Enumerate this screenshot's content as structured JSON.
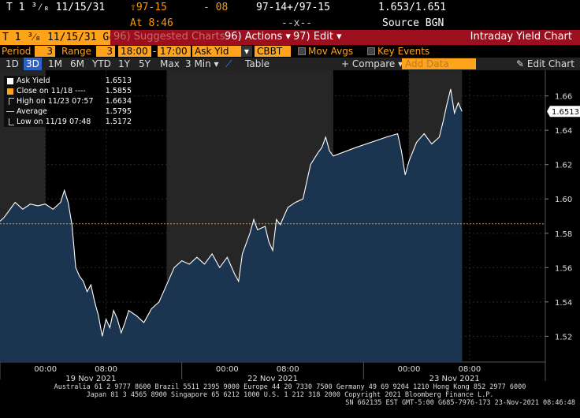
{
  "header": {
    "ticker": "T 1 ³⁄₈ 11/15/31",
    "price": "⇧97-15",
    "change": "- 08",
    "bid_ask": "97-14+/97-15",
    "yields": "1.653/1.651",
    "time_label": "At 8:46",
    "size": "--x--",
    "source": "Source BGN"
  },
  "title_bar": {
    "ticker_box": "T 1 ³⁄₈ 11/15/31 Gc",
    "suggested": "96) Suggested Charts",
    "actions": "96) Actions ▾",
    "edit": "97) Edit ▾",
    "chart_title": "Intraday Yield Chart"
  },
  "params": {
    "period_label": "Period",
    "period_value": "3",
    "range_label": "Range",
    "range_value": "3",
    "time_from": "18:00",
    "time_to": "17:00",
    "field": "Ask Yld",
    "field_arrow": "▾",
    "source": "CBBT",
    "mov_avgs": "Mov Avgs",
    "key_events": "Key Events"
  },
  "range_buttons": [
    "1D",
    "3D",
    "1M",
    "6M",
    "YTD",
    "1Y",
    "5Y",
    "Max"
  ],
  "range_selected": "3D",
  "interval": "3 Min ▾",
  "table_label": "Table",
  "compare_label": "+ Compare ▾",
  "add_data_placeholder": "Add Data",
  "edit_chart_label": "✎ Edit Chart",
  "legend": [
    {
      "label": "Ask Yield",
      "value": "1.6513",
      "marker": "white-square"
    },
    {
      "label": "Close on 11/18 ----",
      "value": "1.5855",
      "marker": "orange-square"
    },
    {
      "label": "High on 11/23 07:57",
      "value": "1.6634",
      "marker": "high-tick"
    },
    {
      "label": "Average",
      "value": "1.5795",
      "marker": "average-line"
    },
    {
      "label": "Low on 11/19 07:48",
      "value": "1.5172",
      "marker": "low-tick"
    }
  ],
  "last_value_tag": "1.6513",
  "footer": {
    "line1": "Australia 61 2 9777 8600 Brazil 5511 2395 9000 Europe 44 20 7330 7500 Germany 49 69 9204 1210 Hong Kong 852 2977 6000",
    "line2": "Japan 81 3 4565 8900      Singapore 65 6212 1000      U.S. 1 212 318 2000           Copyright 2021 Bloomberg Finance L.P.",
    "line3": "SN 662135 EST  GMT-5:00 G685-7976-173 23-Nov-2021 08:46:48"
  },
  "colors": {
    "orange": "#ffa31a",
    "title_bar": "#9b0f1f",
    "fill": "#1b3450",
    "session_shade": "#262626",
    "line": "#ffffff",
    "close_line": "#ff8c00"
  },
  "chart_data": {
    "type": "area",
    "title": "Intraday Yield Chart",
    "series": [
      {
        "name": "Ask Yield"
      }
    ],
    "ylim": [
      1.505,
      1.675
    ],
    "yticks": [
      1.52,
      1.54,
      1.56,
      1.58,
      1.6,
      1.62,
      1.64,
      1.66
    ],
    "ytick_labels": [
      "1.52",
      "1.54",
      "1.56",
      "1.58",
      "1.60",
      "1.62",
      "1.64",
      "1.66"
    ],
    "xticks": [
      {
        "t": 6,
        "label": "00:00"
      },
      {
        "t": 14,
        "label": "08:00"
      },
      {
        "t": 30,
        "label": "00:00"
      },
      {
        "t": 38,
        "label": "08:00"
      },
      {
        "t": 54,
        "label": "00:00"
      },
      {
        "t": 62,
        "label": "08:00"
      }
    ],
    "day_labels": [
      {
        "t": 12,
        "label": "19 Nov 2021"
      },
      {
        "t": 36,
        "label": "22 Nov 2021"
      },
      {
        "t": 60,
        "label": "23 Nov 2021"
      }
    ],
    "xlim": [
      0,
      72
    ],
    "shaded_sessions": [
      [
        0,
        6
      ],
      [
        22,
        44
      ],
      [
        54,
        61
      ]
    ],
    "close_reference": 1.5855,
    "points": [
      [
        0,
        1.587
      ],
      [
        0.5,
        1.589
      ],
      [
        1,
        1.592
      ],
      [
        1.5,
        1.595
      ],
      [
        2,
        1.598
      ],
      [
        2.5,
        1.596
      ],
      [
        3,
        1.594
      ],
      [
        4,
        1.597
      ],
      [
        5,
        1.596
      ],
      [
        6,
        1.597
      ],
      [
        7,
        1.594
      ],
      [
        8,
        1.598
      ],
      [
        8.5,
        1.605
      ],
      [
        9,
        1.598
      ],
      [
        9.5,
        1.585
      ],
      [
        10,
        1.56
      ],
      [
        10.5,
        1.555
      ],
      [
        11,
        1.552
      ],
      [
        11.5,
        1.546
      ],
      [
        12,
        1.55
      ],
      [
        12.5,
        1.54
      ],
      [
        13,
        1.532
      ],
      [
        13.5,
        1.52
      ],
      [
        14,
        1.53
      ],
      [
        14.5,
        1.525
      ],
      [
        15,
        1.535
      ],
      [
        15.5,
        1.53
      ],
      [
        16,
        1.522
      ],
      [
        16.5,
        1.528
      ],
      [
        17,
        1.535
      ],
      [
        18,
        1.532
      ],
      [
        19,
        1.528
      ],
      [
        20,
        1.536
      ],
      [
        21,
        1.54
      ],
      [
        21.5,
        1.545
      ],
      [
        22,
        1.55
      ],
      [
        22.5,
        1.555
      ],
      [
        23,
        1.56
      ],
      [
        24,
        1.564
      ],
      [
        25,
        1.562
      ],
      [
        26,
        1.566
      ],
      [
        27,
        1.562
      ],
      [
        28,
        1.568
      ],
      [
        29,
        1.56
      ],
      [
        30,
        1.566
      ],
      [
        31,
        1.556
      ],
      [
        31.5,
        1.552
      ],
      [
        32,
        1.568
      ],
      [
        33,
        1.58
      ],
      [
        33.5,
        1.588
      ],
      [
        34,
        1.582
      ],
      [
        35,
        1.584
      ],
      [
        35.5,
        1.575
      ],
      [
        36,
        1.57
      ],
      [
        36.5,
        1.588
      ],
      [
        37,
        1.585
      ],
      [
        38,
        1.595
      ],
      [
        39,
        1.598
      ],
      [
        40,
        1.6
      ],
      [
        40.5,
        1.61
      ],
      [
        41,
        1.62
      ],
      [
        42,
        1.627
      ],
      [
        42.5,
        1.63
      ],
      [
        43,
        1.636
      ],
      [
        43.5,
        1.628
      ],
      [
        44,
        1.625
      ],
      [
        47,
        1.63
      ],
      [
        51,
        1.636
      ],
      [
        52.5,
        1.638
      ],
      [
        53,
        1.628
      ],
      [
        53.5,
        1.614
      ],
      [
        54,
        1.622
      ],
      [
        55,
        1.633
      ],
      [
        56,
        1.638
      ],
      [
        57,
        1.632
      ],
      [
        58,
        1.636
      ],
      [
        58.5,
        1.645
      ],
      [
        59,
        1.655
      ],
      [
        59.5,
        1.664
      ],
      [
        60,
        1.65
      ],
      [
        60.5,
        1.656
      ],
      [
        61,
        1.651
      ]
    ]
  }
}
